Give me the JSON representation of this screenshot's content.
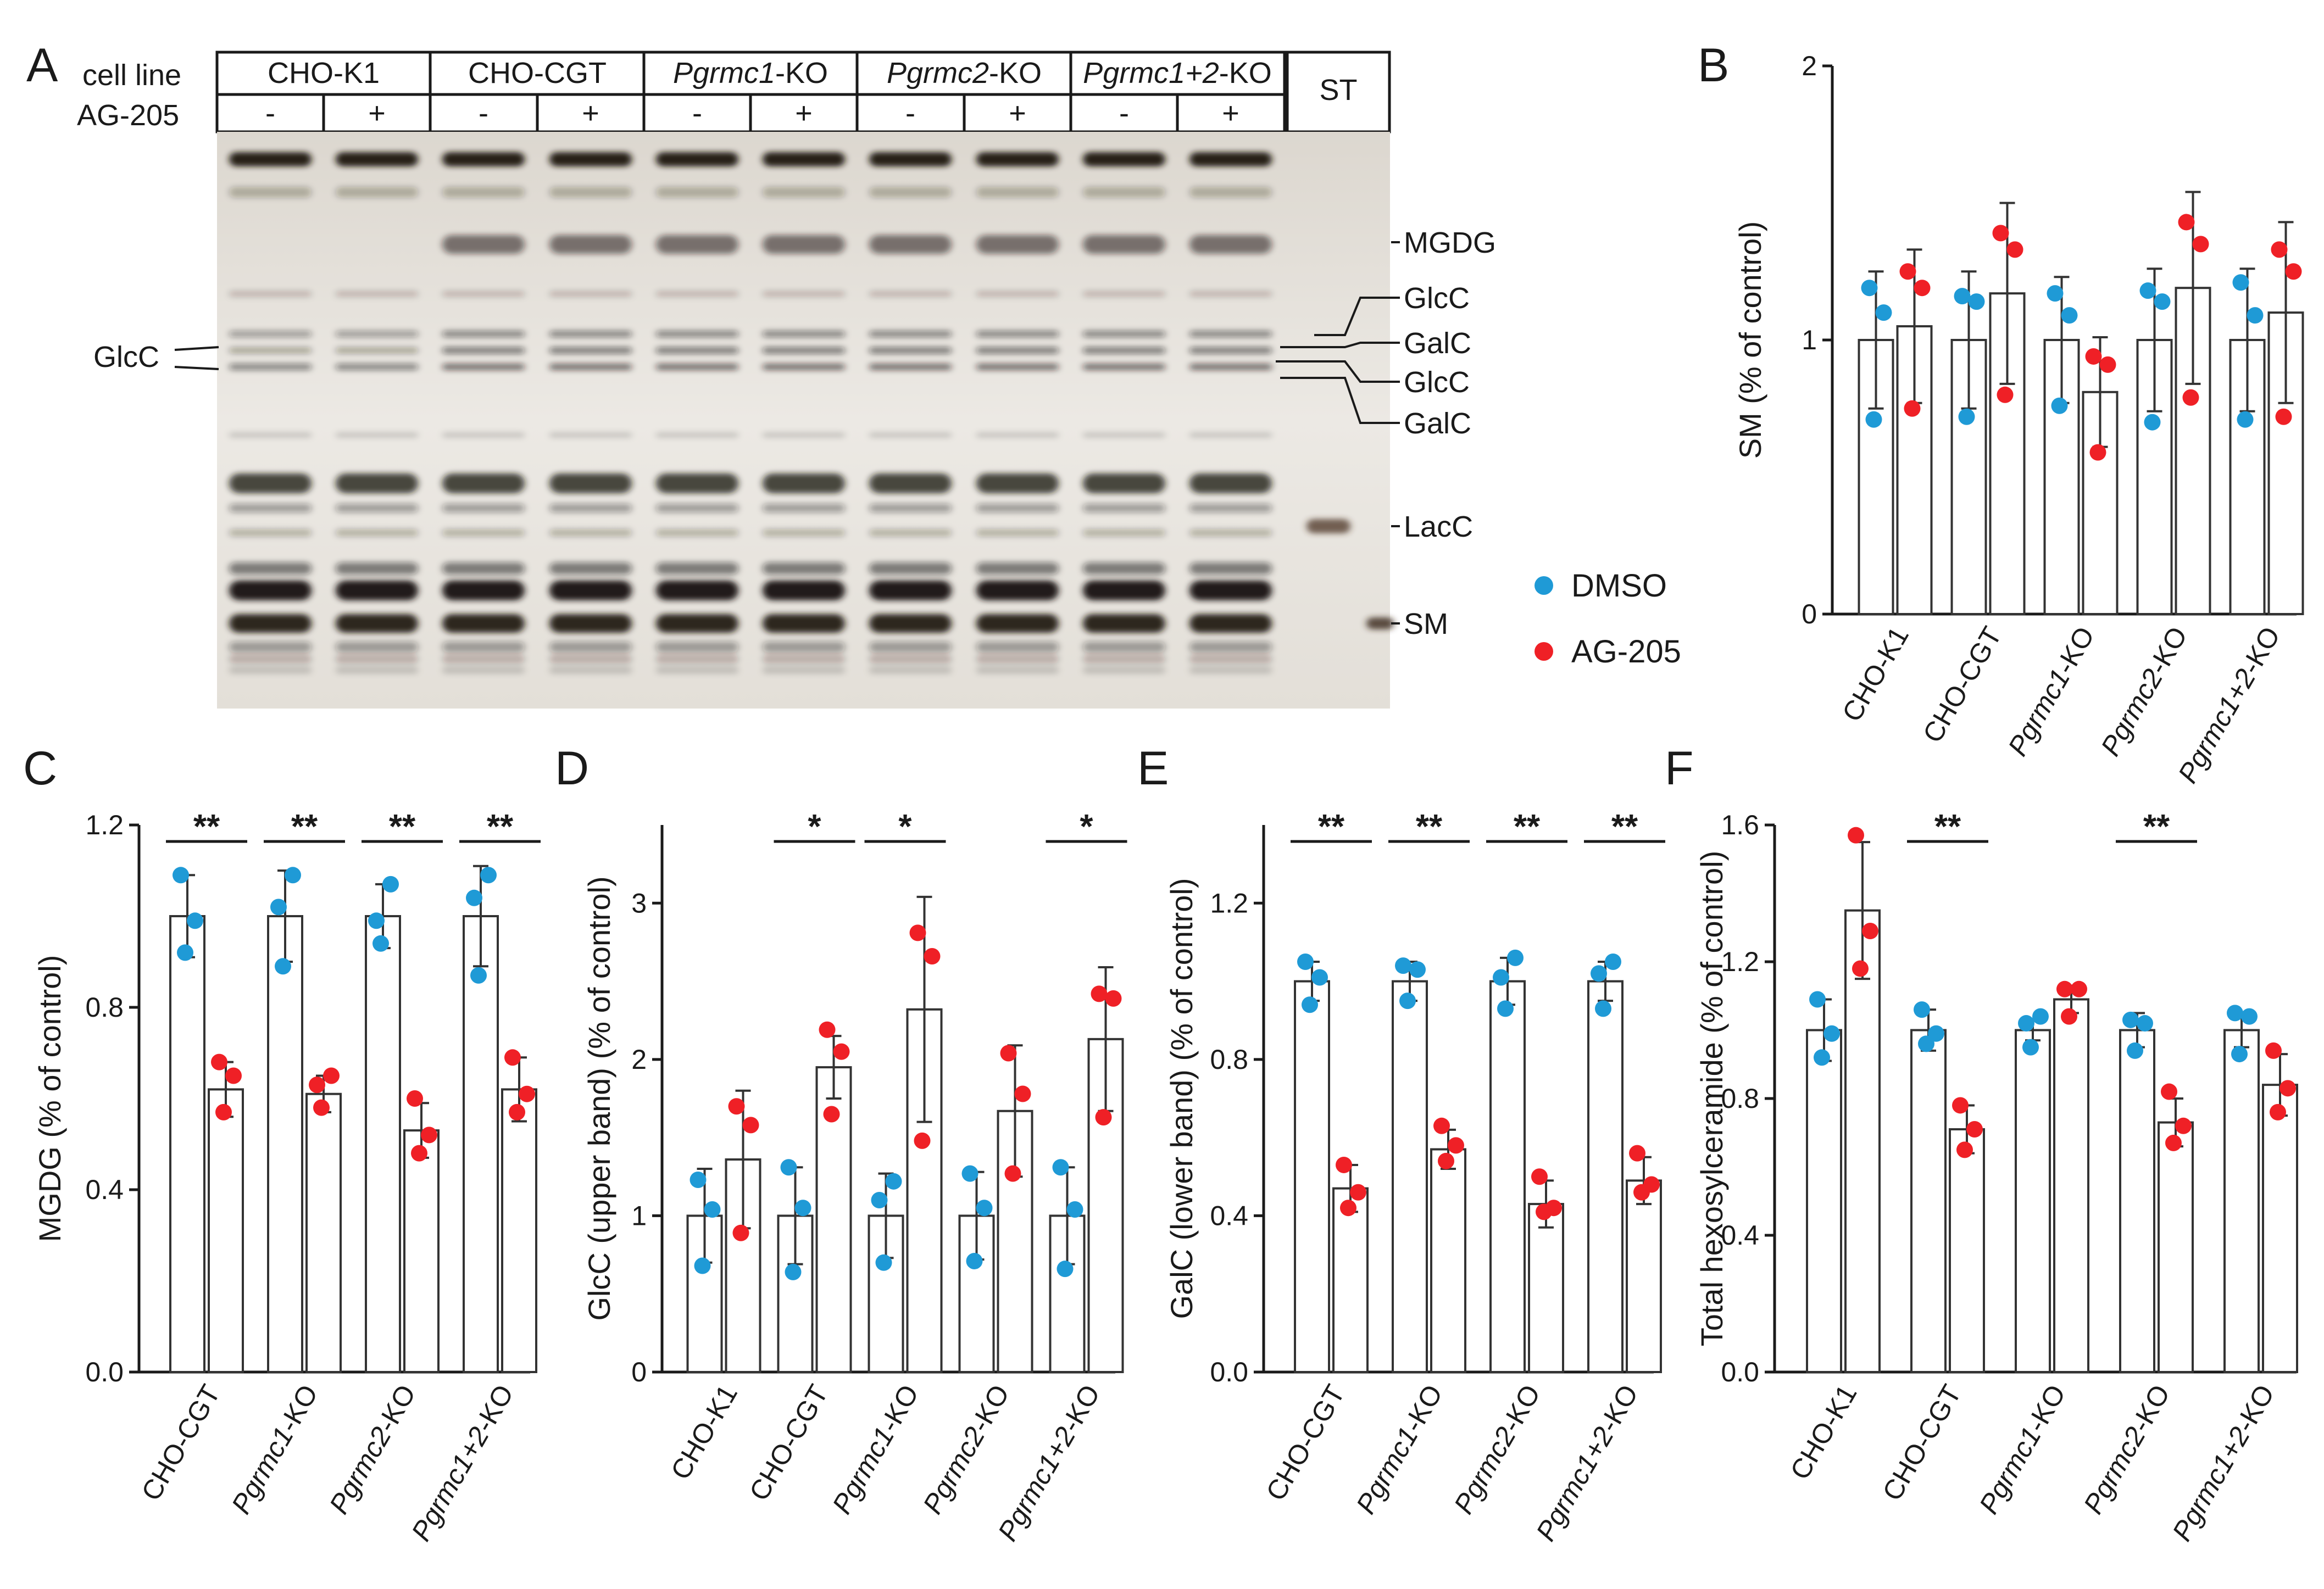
{
  "colors": {
    "dmso": "#1f9ad6",
    "ag205": "#ef2026",
    "bar_edge": "#333333"
  },
  "legend": [
    {
      "label": "DMSO",
      "color": "#1f9ad6"
    },
    {
      "label": "AG-205",
      "color": "#ef2026"
    }
  ],
  "panel_a": {
    "letter": "A",
    "row_labels": [
      "cell line",
      "AG-205"
    ],
    "cell_lines": [
      "CHO-K1",
      "CHO-CGT",
      "Pgrmc1-KO",
      "Pgrmc2-KO",
      "Pgrmc1+2-KO"
    ],
    "treatment_marks": [
      "-",
      "+",
      "-",
      "+",
      "-",
      "+",
      "-",
      "+",
      "-",
      "+"
    ],
    "standard_label": "ST",
    "left_band_label": "GlcC",
    "right_band_labels": [
      "MGDG",
      "GlcC",
      "GalC",
      "GlcC",
      "GalC",
      "LacC",
      "SM"
    ]
  },
  "chart_data": [
    {
      "panel": "B",
      "type": "bar",
      "ylabel": "SM (% of control)",
      "ylim": [
        0,
        2
      ],
      "yticks": [
        0,
        1,
        2
      ],
      "tick_format": "int",
      "categories": [
        "CHO-K1",
        "CHO-CGT",
        "Pgrmc1-KO",
        "Pgrmc2-KO",
        "Pgrmc1+2-KO"
      ],
      "series": [
        {
          "name": "DMSO",
          "values": [
            1.0,
            1.0,
            1.0,
            1.0,
            1.0
          ],
          "sd": [
            0.25,
            0.25,
            0.23,
            0.26,
            0.26
          ],
          "points": [
            [
              1.19,
              1.1,
              0.71
            ],
            [
              1.16,
              1.14,
              0.72
            ],
            [
              1.17,
              1.09,
              0.76
            ],
            [
              1.18,
              1.14,
              0.7
            ],
            [
              1.21,
              1.09,
              0.71
            ]
          ]
        },
        {
          "name": "AG-205",
          "values": [
            1.05,
            1.17,
            0.81,
            1.19,
            1.1
          ],
          "sd": [
            0.28,
            0.33,
            0.2,
            0.35,
            0.33
          ],
          "points": [
            [
              1.25,
              1.19,
              0.75
            ],
            [
              1.39,
              1.33,
              0.8
            ],
            [
              0.94,
              0.91,
              0.59
            ],
            [
              1.43,
              1.35,
              0.79
            ],
            [
              1.33,
              1.25,
              0.72
            ]
          ]
        }
      ],
      "significance": []
    },
    {
      "panel": "C",
      "type": "bar",
      "ylabel": "MGDG (% of control)",
      "ylim": [
        0,
        1.2
      ],
      "yticks": [
        0,
        0.4,
        0.8,
        1.2
      ],
      "tick_format": "1dp",
      "categories": [
        "CHO-CGT",
        "Pgrmc1-KO",
        "Pgrmc2-KO",
        "Pgrmc1+2-KO"
      ],
      "series": [
        {
          "name": "DMSO",
          "values": [
            1.0,
            1.0,
            1.0,
            1.0
          ],
          "sd": [
            0.09,
            0.1,
            0.07,
            0.11
          ],
          "points": [
            [
              1.09,
              0.99,
              0.92
            ],
            [
              1.02,
              1.09,
              0.89
            ],
            [
              0.99,
              1.07,
              0.94
            ],
            [
              1.04,
              1.09,
              0.87
            ]
          ]
        },
        {
          "name": "AG-205",
          "values": [
            0.62,
            0.61,
            0.53,
            0.62
          ],
          "sd": [
            0.06,
            0.04,
            0.06,
            0.07
          ],
          "points": [
            [
              0.68,
              0.65,
              0.57
            ],
            [
              0.63,
              0.65,
              0.58
            ],
            [
              0.6,
              0.52,
              0.48
            ],
            [
              0.69,
              0.61,
              0.57
            ]
          ]
        }
      ],
      "significance": [
        "**",
        "**",
        "**",
        "**"
      ]
    },
    {
      "panel": "D",
      "type": "bar",
      "ylabel": "GlcC (upper band) (% of control)",
      "ylim": [
        0,
        3.5
      ],
      "yticks": [
        0,
        1,
        2,
        3
      ],
      "tick_format": "int",
      "categories": [
        "CHO-K1",
        "CHO-CGT",
        "Pgrmc1-KO",
        "Pgrmc2-KO",
        "Pgrmc1+2-KO"
      ],
      "series": [
        {
          "name": "DMSO",
          "values": [
            1.0,
            1.0,
            1.0,
            1.0,
            1.0
          ],
          "sd": [
            0.3,
            0.31,
            0.27,
            0.28,
            0.31
          ],
          "points": [
            [
              1.23,
              1.04,
              0.68
            ],
            [
              1.31,
              1.05,
              0.64
            ],
            [
              1.1,
              1.22,
              0.7
            ],
            [
              1.27,
              1.05,
              0.71
            ],
            [
              1.31,
              1.04,
              0.66
            ]
          ]
        },
        {
          "name": "AG-205",
          "values": [
            1.36,
            1.95,
            2.32,
            1.67,
            2.13
          ],
          "sd": [
            0.44,
            0.2,
            0.72,
            0.42,
            0.46
          ],
          "points": [
            [
              1.7,
              1.58,
              0.89
            ],
            [
              2.19,
              2.05,
              1.65
            ],
            [
              2.81,
              2.66,
              1.48
            ],
            [
              2.04,
              1.78,
              1.27
            ],
            [
              2.42,
              2.39,
              1.63
            ]
          ]
        }
      ],
      "significance": [
        "",
        "*",
        "*",
        "",
        "*"
      ]
    },
    {
      "panel": "E",
      "type": "bar",
      "ylabel": "GalC (lower band) (% of control)",
      "ylim": [
        0,
        1.4
      ],
      "yticks": [
        0,
        0.4,
        0.8,
        1.2
      ],
      "tick_format": "1dp",
      "categories": [
        "CHO-CGT",
        "Pgrmc1-KO",
        "Pgrmc2-KO",
        "Pgrmc1+2-KO"
      ],
      "series": [
        {
          "name": "DMSO",
          "values": [
            1.0,
            1.0,
            1.0,
            1.0
          ],
          "sd": [
            0.05,
            0.05,
            0.06,
            0.05
          ],
          "points": [
            [
              1.05,
              1.01,
              0.94
            ],
            [
              1.04,
              1.03,
              0.95
            ],
            [
              1.01,
              1.06,
              0.93
            ],
            [
              1.02,
              1.05,
              0.93
            ]
          ]
        },
        {
          "name": "AG-205",
          "values": [
            0.47,
            0.57,
            0.43,
            0.49
          ],
          "sd": [
            0.06,
            0.05,
            0.06,
            0.06
          ],
          "points": [
            [
              0.53,
              0.46,
              0.42
            ],
            [
              0.63,
              0.58,
              0.54
            ],
            [
              0.5,
              0.42,
              0.41
            ],
            [
              0.56,
              0.48,
              0.46
            ]
          ]
        }
      ],
      "significance": [
        "**",
        "**",
        "**",
        "**"
      ]
    },
    {
      "panel": "F",
      "type": "bar",
      "ylabel": "Total hexosylceramide (% of control)",
      "ylim": [
        0,
        1.6
      ],
      "yticks": [
        0,
        0.4,
        0.8,
        1.2,
        1.6
      ],
      "tick_format": "1dp",
      "categories": [
        "CHO-K1",
        "CHO-CGT",
        "Pgrmc1-KO",
        "Pgrmc2-KO",
        "Pgrmc1+2-KO"
      ],
      "series": [
        {
          "name": "DMSO",
          "values": [
            1.0,
            1.0,
            1.0,
            1.0,
            1.0
          ],
          "sd": [
            0.09,
            0.06,
            0.03,
            0.05,
            0.05
          ],
          "points": [
            [
              1.09,
              0.99,
              0.92
            ],
            [
              1.06,
              0.99,
              0.96
            ],
            [
              1.02,
              1.04,
              0.95
            ],
            [
              1.03,
              1.02,
              0.94
            ],
            [
              1.05,
              1.04,
              0.93
            ]
          ]
        },
        {
          "name": "AG-205",
          "values": [
            1.35,
            0.71,
            1.09,
            0.73,
            0.84
          ],
          "sd": [
            0.2,
            0.07,
            0.04,
            0.07,
            0.09
          ],
          "points": [
            [
              1.57,
              1.29,
              1.18
            ],
            [
              0.78,
              0.71,
              0.65
            ],
            [
              1.12,
              1.12,
              1.04
            ],
            [
              0.82,
              0.72,
              0.67
            ],
            [
              0.94,
              0.83,
              0.76
            ]
          ]
        }
      ],
      "significance": [
        "",
        "**",
        "",
        "**",
        ""
      ]
    }
  ]
}
